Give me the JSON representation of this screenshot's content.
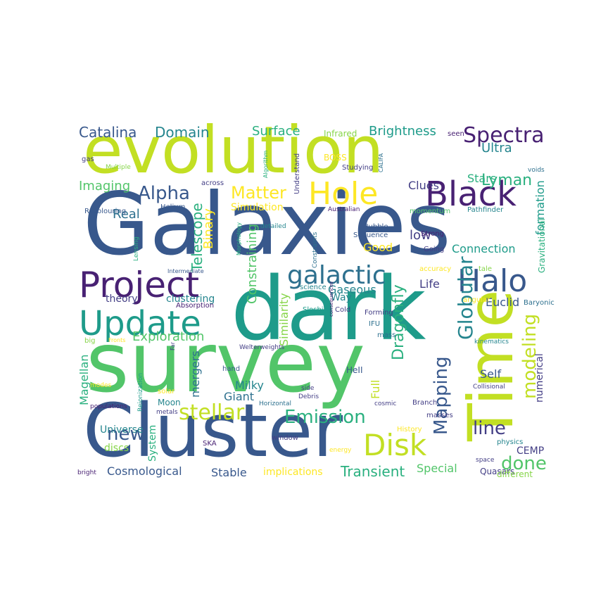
{
  "palette": {
    "dark_purple": "#482173",
    "purple": "#433e85",
    "blue": "#38588c",
    "steel": "#2d708e",
    "teal": "#25858e",
    "teal_green": "#1e9b8a",
    "green": "#2ab07f",
    "light_green": "#52c569",
    "lime": "#86d549",
    "yellow_green": "#c2df23",
    "yellow": "#fde725"
  },
  "words": [
    {
      "text": "Galaxies",
      "color": "blue"
    },
    {
      "text": "survey",
      "color": "light_green"
    },
    {
      "text": "dark",
      "color": "teal_green"
    },
    {
      "text": "Cluster",
      "color": "blue"
    },
    {
      "text": "evolution",
      "color": "yellow_green"
    },
    {
      "text": "Time",
      "color": "yellow_green"
    },
    {
      "text": "Black",
      "color": "dark_purple"
    },
    {
      "text": "Hole",
      "color": "yellow"
    },
    {
      "text": "Project",
      "color": "dark_purple"
    },
    {
      "text": "Update",
      "color": "teal_green"
    },
    {
      "text": "Halo",
      "color": "blue"
    },
    {
      "text": "galactic",
      "color": "steel"
    },
    {
      "text": "Disk",
      "color": "yellow_green"
    },
    {
      "text": "Spectra",
      "color": "dark_purple"
    },
    {
      "text": "Emission",
      "color": "green"
    },
    {
      "text": "stellar",
      "color": "yellow_green"
    },
    {
      "text": "modeling",
      "color": "yellow_green"
    },
    {
      "text": "Globular",
      "color": "teal"
    },
    {
      "text": "Mapping",
      "color": "blue"
    },
    {
      "text": "Dragonfly",
      "color": "green"
    },
    {
      "text": "Alpha",
      "color": "blue"
    },
    {
      "text": "Matter",
      "color": "yellow"
    },
    {
      "text": "Lyman",
      "color": "green"
    },
    {
      "text": "new",
      "color": "blue"
    },
    {
      "text": "line",
      "color": "purple"
    },
    {
      "text": "done",
      "color": "light_green"
    },
    {
      "text": "Transient",
      "color": "green"
    },
    {
      "text": "Catalina",
      "color": "blue"
    },
    {
      "text": "Domain",
      "color": "teal"
    },
    {
      "text": "Surface",
      "color": "green"
    },
    {
      "text": "Brightness",
      "color": "teal_green"
    },
    {
      "text": "Ultra",
      "color": "teal"
    },
    {
      "text": "Imaging",
      "color": "light_green"
    },
    {
      "text": "Real",
      "color": "steel"
    },
    {
      "text": "Telescope",
      "color": "green"
    },
    {
      "text": "Binary",
      "color": "yellow"
    },
    {
      "text": "Constraining",
      "color": "light_green"
    },
    {
      "text": "Similarity",
      "color": "lime"
    },
    {
      "text": "Exploration",
      "color": "light_green"
    },
    {
      "text": "Gaseous",
      "color": "teal"
    },
    {
      "text": "Good",
      "color": "yellow"
    },
    {
      "text": "low",
      "color": "purple"
    },
    {
      "text": "Connection",
      "color": "teal_green"
    },
    {
      "text": "Euclid",
      "color": "blue"
    },
    {
      "text": "Life",
      "color": "purple"
    },
    {
      "text": "Simulation",
      "color": "yellow"
    },
    {
      "text": "Stars",
      "color": "green"
    },
    {
      "text": "Clues",
      "color": "purple"
    },
    {
      "text": "formation",
      "color": "teal_green"
    },
    {
      "text": "Gravitational",
      "color": "green"
    },
    {
      "text": "Magellan",
      "color": "green"
    },
    {
      "text": "theory",
      "color": "purple"
    },
    {
      "text": "clustering",
      "color": "teal"
    },
    {
      "text": "Way",
      "color": "teal"
    },
    {
      "text": "Milky",
      "color": "teal"
    },
    {
      "text": "Giant",
      "color": "steel"
    },
    {
      "text": "mergers",
      "color": "steel"
    },
    {
      "text": "Full",
      "color": "yellow_green"
    },
    {
      "text": "Self",
      "color": "blue"
    },
    {
      "text": "numerical",
      "color": "purple"
    },
    {
      "text": "Universe",
      "color": "teal"
    },
    {
      "text": "discs",
      "color": "lime"
    },
    {
      "text": "System",
      "color": "green"
    },
    {
      "text": "Cosmological",
      "color": "blue"
    },
    {
      "text": "Stable",
      "color": "blue"
    },
    {
      "text": "implications",
      "color": "yellow"
    },
    {
      "text": "Special",
      "color": "light_green"
    },
    {
      "text": "CEMP",
      "color": "purple"
    },
    {
      "text": "Quasars",
      "color": "purple"
    },
    {
      "text": "different",
      "color": "lime"
    },
    {
      "text": "Infrared",
      "color": "lime"
    },
    {
      "text": "seen",
      "color": "dark_purple"
    },
    {
      "text": "gas",
      "color": "purple"
    },
    {
      "text": "Multiple",
      "color": "lime"
    },
    {
      "text": "Algorithm",
      "color": "green"
    },
    {
      "text": "Understand",
      "color": "purple"
    },
    {
      "text": "BOSS",
      "color": "yellow"
    },
    {
      "text": "Studying",
      "color": "purple"
    },
    {
      "text": "CALIFA",
      "color": "steel"
    },
    {
      "text": "voids",
      "color": "steel"
    },
    {
      "text": "across",
      "color": "purple"
    },
    {
      "text": "Helium",
      "color": "blue"
    },
    {
      "text": "Recolouring",
      "color": "blue"
    },
    {
      "text": "Australian",
      "color": "dark_purple"
    },
    {
      "text": "momentum",
      "color": "light_green"
    },
    {
      "text": "Pathfinder",
      "color": "teal"
    },
    {
      "text": "Morphology",
      "color": "green"
    },
    {
      "text": "detailed",
      "color": "teal"
    },
    {
      "text": "Constraints",
      "color": "steel"
    },
    {
      "text": "Hubble",
      "color": "blue"
    },
    {
      "text": "Sequence",
      "color": "blue"
    },
    {
      "text": "Going",
      "color": "purple"
    },
    {
      "text": "Strong",
      "color": "dark_purple"
    },
    {
      "text": "Lensing",
      "color": "green"
    },
    {
      "text": "Intermediate",
      "color": "blue"
    },
    {
      "text": "accuracy",
      "color": "yellow"
    },
    {
      "text": "tale",
      "color": "lime"
    },
    {
      "text": "science",
      "color": "teal"
    },
    {
      "text": "Absorption",
      "color": "dark_purple"
    },
    {
      "text": "Sloshing",
      "color": "teal_green"
    },
    {
      "text": "angular",
      "color": "yellow"
    },
    {
      "text": "Forming",
      "color": "purple"
    },
    {
      "text": "Baryonic",
      "color": "steel"
    },
    {
      "text": "IFU",
      "color": "steel"
    },
    {
      "text": "Cold",
      "color": "purple"
    },
    {
      "text": "consequences",
      "color": "dark_purple"
    },
    {
      "text": "mass",
      "color": "steel"
    },
    {
      "text": "kinematics",
      "color": "teal"
    },
    {
      "text": "big",
      "color": "lime"
    },
    {
      "text": "Fronts",
      "color": "yellow"
    },
    {
      "text": "Far",
      "color": "purple"
    },
    {
      "text": "hand",
      "color": "blue"
    },
    {
      "text": "HeII",
      "color": "blue"
    },
    {
      "text": "solar",
      "color": "yellow"
    },
    {
      "text": "Moon",
      "color": "teal"
    },
    {
      "text": "modes",
      "color": "yellow"
    },
    {
      "text": "Reionization",
      "color": "teal_green"
    },
    {
      "text": "side",
      "color": "purple"
    },
    {
      "text": "Debris",
      "color": "purple"
    },
    {
      "text": "Horizontal",
      "color": "steel"
    },
    {
      "text": "cosmic",
      "color": "purple"
    },
    {
      "text": "Branch",
      "color": "purple"
    },
    {
      "text": "Collisional",
      "color": "purple"
    },
    {
      "text": "physics",
      "color": "teal"
    },
    {
      "text": "populations",
      "color": "dark_purple"
    },
    {
      "text": "metals",
      "color": "purple"
    },
    {
      "text": "masses",
      "color": "purple"
    },
    {
      "text": "History",
      "color": "yellow"
    },
    {
      "text": "SKA",
      "color": "dark_purple"
    },
    {
      "text": "window",
      "color": "purple"
    },
    {
      "text": "energy",
      "color": "yellow"
    },
    {
      "text": "space",
      "color": "purple"
    },
    {
      "text": "bright",
      "color": "dark_purple"
    },
    {
      "text": "Welterweights",
      "color": "purple"
    }
  ]
}
